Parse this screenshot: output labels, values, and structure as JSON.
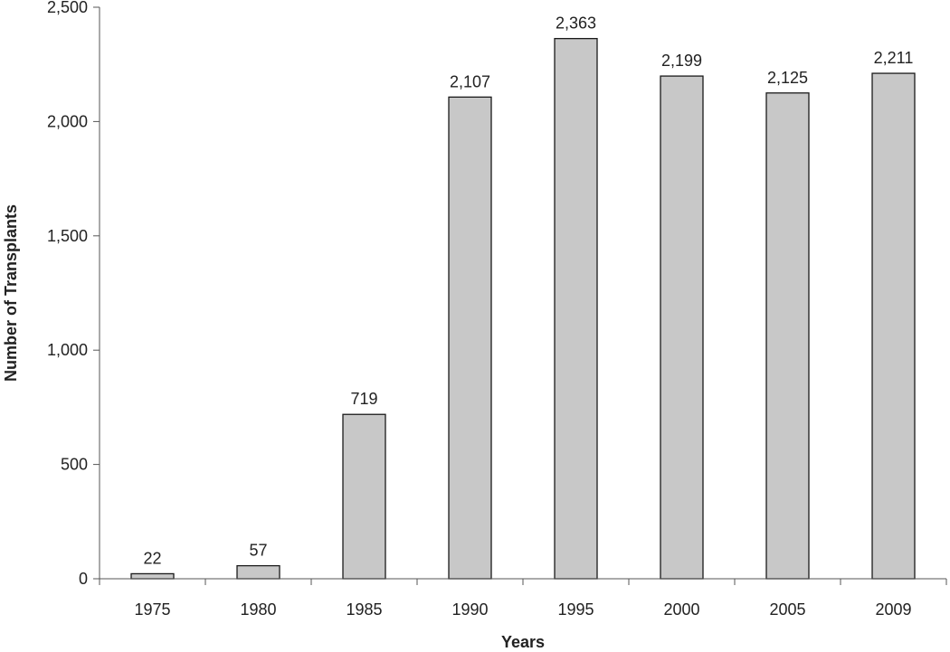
{
  "chart_data": {
    "type": "bar",
    "title": "",
    "xlabel": "Years",
    "ylabel": "Number of Transplants",
    "categories": [
      "1975",
      "1980",
      "1985",
      "1990",
      "1995",
      "2000",
      "2005",
      "2009"
    ],
    "values": [
      22,
      57,
      719,
      2107,
      2363,
      2199,
      2125,
      2211
    ],
    "value_labels": [
      "22",
      "57",
      "719",
      "2,107",
      "2,363",
      "2,199",
      "2,125",
      "2,211"
    ],
    "ylim": [
      0,
      2500
    ],
    "yticks": [
      0,
      500,
      1000,
      1500,
      2000,
      2500
    ],
    "ytick_labels": [
      "0",
      "500",
      "1,000",
      "1,500",
      "2,000",
      "2,500"
    ],
    "grid": false,
    "legend": "none",
    "bar_color": "#c8c8c8",
    "bar_stroke": "#1a1a1a"
  }
}
